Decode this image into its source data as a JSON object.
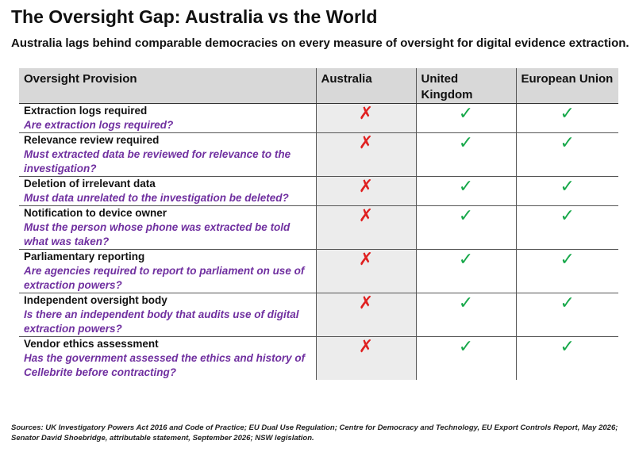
{
  "title": "The Oversight Gap: Australia vs the World",
  "subtitle": "Australia lags behind comparable democracies on every measure of oversight for digital evidence extraction.",
  "table": {
    "headers": {
      "provision": "Oversight Provision",
      "australia": "Australia",
      "uk": "United Kingdom",
      "eu": "European Union"
    },
    "rows": [
      {
        "name": "Extraction logs required",
        "question": "Are extraction logs required?",
        "australia": "✗",
        "uk": "✓",
        "eu": "✓"
      },
      {
        "name": "Relevance review required",
        "question": "Must extracted data be reviewed for relevance to the investigation?",
        "australia": "✗",
        "uk": "✓",
        "eu": "✓"
      },
      {
        "name": "Deletion of irrelevant data",
        "question": "Must data unrelated to the investigation be deleted?",
        "australia": "✗",
        "uk": "✓",
        "eu": "✓"
      },
      {
        "name": "Notification to device owner",
        "question": "Must the person whose phone was extracted be told what was taken?",
        "australia": "✗",
        "uk": "✓",
        "eu": "✓"
      },
      {
        "name": "Parliamentary reporting",
        "question": "Are agencies required to report to parliament on use of extraction powers?",
        "australia": "✗",
        "uk": "✓",
        "eu": "✓"
      },
      {
        "name": "Independent oversight body",
        "question": "Is there an independent body that audits use of digital extraction powers?",
        "australia": "✗",
        "uk": "✓",
        "eu": "✓"
      },
      {
        "name": "Vendor ethics assessment",
        "question": "Has the government assessed the ethics and history of Cellebrite before contracting?",
        "australia": "✗",
        "uk": "✓",
        "eu": "✓"
      }
    ]
  },
  "sources": "Sources: UK Investigatory Powers Act 2016 and Code of Practice; EU Dual Use Regulation; Centre for Democracy and Technology, EU Export Controls Report, May 2026; Senator David Shoebridge, attributable statement, September 2026; NSW legislation.",
  "colors": {
    "cross": "#e02020",
    "tick": "#17a84a",
    "question": "#7030a0",
    "header_bg": "#d8d8d8",
    "australia_bg": "#ececec"
  }
}
